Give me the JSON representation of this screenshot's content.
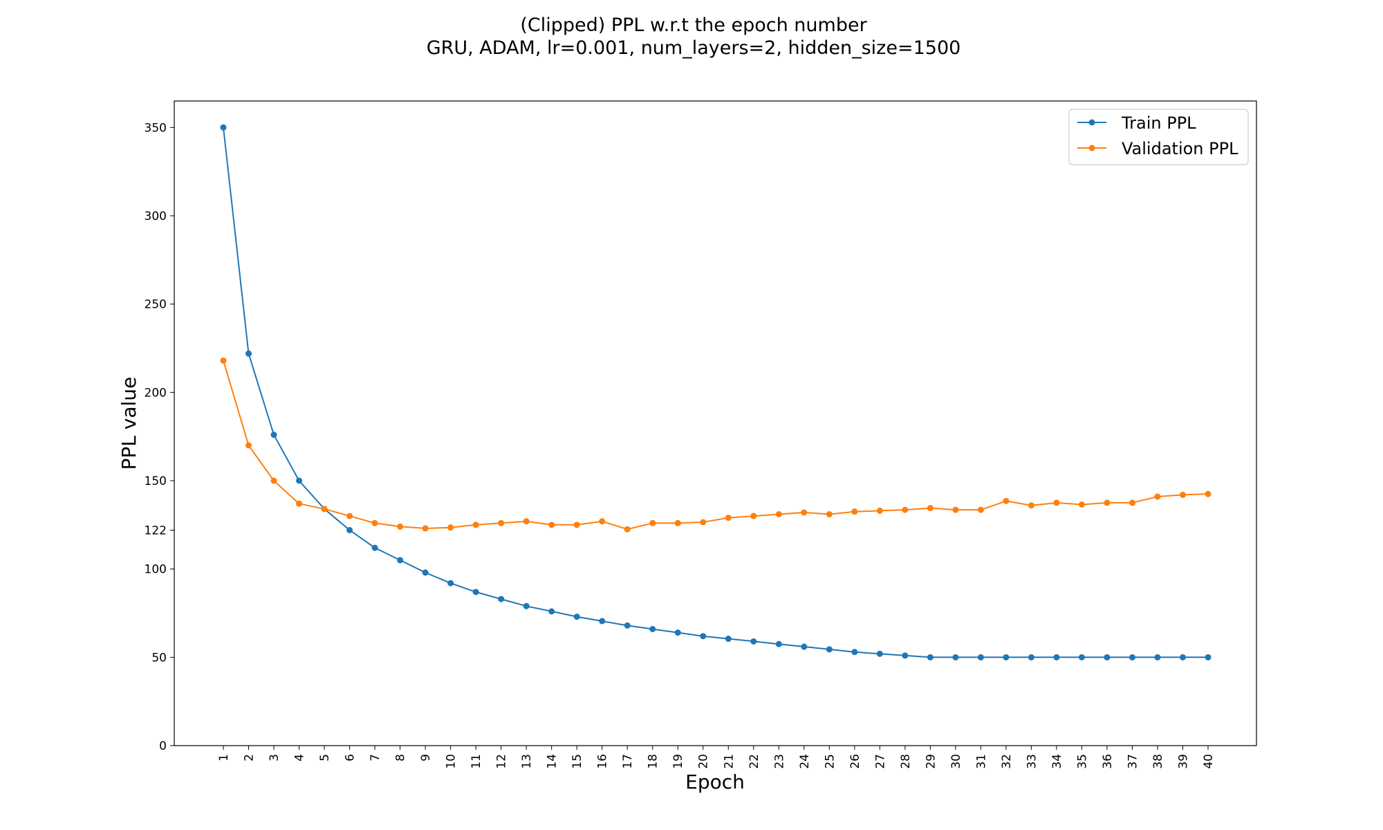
{
  "chart_data": {
    "type": "line",
    "title": "(Clipped) PPL w.r.t the epoch number",
    "subtitle": "GRU, ADAM, lr=0.001,  num_layers=2,  hidden_size=1500",
    "xlabel": "Epoch",
    "ylabel": "PPL value",
    "x": [
      1,
      2,
      3,
      4,
      5,
      6,
      7,
      8,
      9,
      10,
      11,
      12,
      13,
      14,
      15,
      16,
      17,
      18,
      19,
      20,
      21,
      22,
      23,
      24,
      25,
      26,
      27,
      28,
      29,
      30,
      31,
      32,
      33,
      34,
      35,
      36,
      37,
      38,
      39,
      40
    ],
    "yticks": [
      0,
      50,
      100,
      122,
      150,
      200,
      250,
      300,
      350
    ],
    "ylim": [
      0,
      365
    ],
    "grid": false,
    "legend_position": "top-right",
    "series": [
      {
        "name": "Train PPL",
        "color": "#1f77b4",
        "values": [
          350,
          222,
          176,
          150,
          134,
          122,
          112,
          105,
          98,
          92,
          87,
          83,
          79,
          76,
          73,
          70.5,
          68,
          66,
          64,
          62,
          60.5,
          59,
          57.5,
          56,
          54.5,
          53,
          52,
          51,
          50,
          50,
          50,
          50,
          50,
          50,
          50,
          50,
          50,
          50,
          50,
          50
        ]
      },
      {
        "name": "Validation PPL",
        "color": "#ff7f0e",
        "values": [
          218,
          170,
          150,
          137,
          134,
          130,
          126,
          124,
          123,
          123.5,
          125,
          126,
          127,
          125,
          125,
          127,
          122.5,
          126,
          126,
          126.5,
          129,
          130,
          131,
          132,
          131,
          132.5,
          133,
          133.5,
          134.5,
          133.5,
          133.5,
          138.5,
          136,
          137.5,
          136.5,
          137.5,
          137.5,
          141,
          142,
          142.5
        ]
      }
    ]
  }
}
